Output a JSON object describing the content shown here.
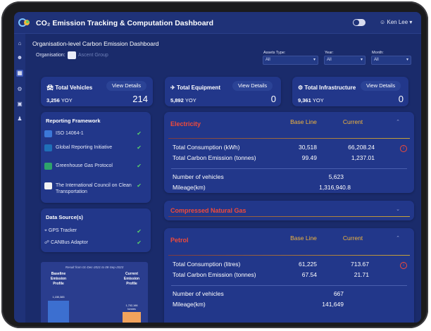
{
  "header": {
    "title": "CO₂ Emission Tracking & Computation Dashboard",
    "user": "☺ Ken Lee ▾"
  },
  "page": {
    "title": "Organisation-level Carbon Emission Dashboard",
    "org_label": "Organisation:",
    "org_name": "Ascent Group"
  },
  "filters": [
    {
      "label": "Assets Type:",
      "value": "All"
    },
    {
      "label": "Year:",
      "value": "All"
    },
    {
      "label": "Month:",
      "value": "All"
    }
  ],
  "kpis": [
    {
      "title": "Total Vehicles",
      "button": "View Details",
      "sub_value": "3,256",
      "sub_unit": "YOY",
      "value": "214"
    },
    {
      "title": "Total Equipment",
      "button": "View Details",
      "sub_value": "5,892",
      "sub_unit": "YOY",
      "value": "0"
    },
    {
      "title": "Total Infrastructure",
      "button": "View Details",
      "sub_value": "9,361",
      "sub_unit": "YOY",
      "value": "0"
    }
  ],
  "reporting": {
    "title": "Reporting Framework",
    "items": [
      {
        "label": "ISO 14064-1"
      },
      {
        "label": "Global Reporting Initiative"
      },
      {
        "label": "Greenhouse Gas Protocol"
      },
      {
        "label": "The International Council on Clean Transportation"
      }
    ]
  },
  "data_sources": {
    "title": "Data Source(s)",
    "items": [
      {
        "label": "GPS Tracker"
      },
      {
        "label": "CANBus Adaptor"
      }
    ]
  },
  "profile_chart": {
    "caption": "Result from 01-Dec-2021 to 08-Sep-2023",
    "baseline_label": "Baseline Emission Profile",
    "current_label": "Current Emission Profile",
    "baseline_value": "1,150,383",
    "current_value": "1,702,166",
    "current_unit": "tonnes"
  },
  "sections": {
    "electricity": {
      "title": "Electricity",
      "col_base": "Base Line",
      "col_current": "Current",
      "rows": [
        {
          "label": "Total Consumption (kWh)",
          "base": "30,518",
          "current": "66,208.24"
        },
        {
          "label": "Total Carbon Emission (tonnes)",
          "base": "99.49",
          "current": "1,237.01"
        }
      ],
      "vehicles_label": "Number of vehicles",
      "vehicles_value": "5,623",
      "mileage_label": "Mileage(km)",
      "mileage_value": "1,316,940.8"
    },
    "cng": {
      "title": "Compressed Natural Gas"
    },
    "petrol": {
      "title": "Petrol",
      "col_base": "Base Line",
      "col_current": "Current",
      "rows": [
        {
          "label": "Total Consumption (litres)",
          "base": "61,225",
          "current": "713.67"
        },
        {
          "label": "Total Carbon Emission (tonnes)",
          "base": "67.54",
          "current": "21.71"
        }
      ],
      "vehicles_label": "Number of vehicles",
      "vehicles_value": "667",
      "mileage_label": "Mileage(km)",
      "mileage_value": "141,649"
    }
  },
  "colors": {
    "accent": "#f04a3a",
    "header_gold": "#f2b53c",
    "check": "#5bd26b"
  }
}
